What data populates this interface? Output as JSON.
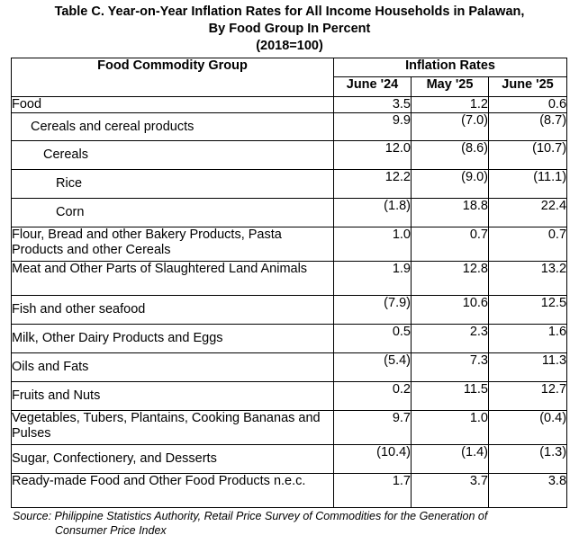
{
  "title": {
    "line1": "Table C. Year-on-Year Inflation Rates for All Income Households in Palawan,",
    "line2": "By Food Group In Percent",
    "line3": "(2018=100)"
  },
  "header": {
    "group_label": "Food Commodity Group",
    "rates_label": "Inflation Rates",
    "periods": [
      "June '24",
      "May '25",
      "June '25"
    ]
  },
  "rows": [
    {
      "label": "Food",
      "values": [
        "3.5",
        "1.2",
        "0.6"
      ]
    },
    {
      "label": "Cereals and cereal products",
      "values": [
        "9.9",
        "(7.0)",
        "(8.7)"
      ]
    },
    {
      "label": "Cereals",
      "values": [
        "12.0",
        "(8.6)",
        "(10.7)"
      ]
    },
    {
      "label": "Rice",
      "values": [
        "12.2",
        "(9.0)",
        "(11.1)"
      ]
    },
    {
      "label": "Corn",
      "values": [
        "(1.8)",
        "18.8",
        "22.4"
      ]
    },
    {
      "label": "Flour, Bread and other Bakery Products, Pasta Products and other Cereals",
      "values": [
        "1.0",
        "0.7",
        "0.7"
      ]
    },
    {
      "label": "Meat and Other Parts of Slaughtered Land Animals",
      "values": [
        "1.9",
        "12.8",
        "13.2"
      ]
    },
    {
      "label": "Fish and other seafood",
      "values": [
        "(7.9)",
        "10.6",
        "12.5"
      ]
    },
    {
      "label": "Milk, Other Dairy Products and Eggs",
      "values": [
        "0.5",
        "2.3",
        "1.6"
      ]
    },
    {
      "label": "Oils and Fats",
      "values": [
        "(5.4)",
        "7.3",
        "11.3"
      ]
    },
    {
      "label": "Fruits and Nuts",
      "values": [
        "0.2",
        "11.5",
        "12.7"
      ]
    },
    {
      "label": "Vegetables, Tubers, Plantains, Cooking Bananas and Pulses",
      "values": [
        "9.7",
        "1.0",
        "(0.4)"
      ]
    },
    {
      "label": "Sugar, Confectionery, and Desserts",
      "values": [
        "(10.4)",
        "(1.4)",
        "(1.3)"
      ]
    },
    {
      "label": "Ready-made Food and Other Food Products n.e.c.",
      "values": [
        "1.7",
        "3.7",
        "3.8"
      ]
    }
  ],
  "source": {
    "line1": "Source: Philippine Statistics Authority, Retail Price Survey of Commodities for the Generation of",
    "line2": "Consumer Price Index"
  }
}
